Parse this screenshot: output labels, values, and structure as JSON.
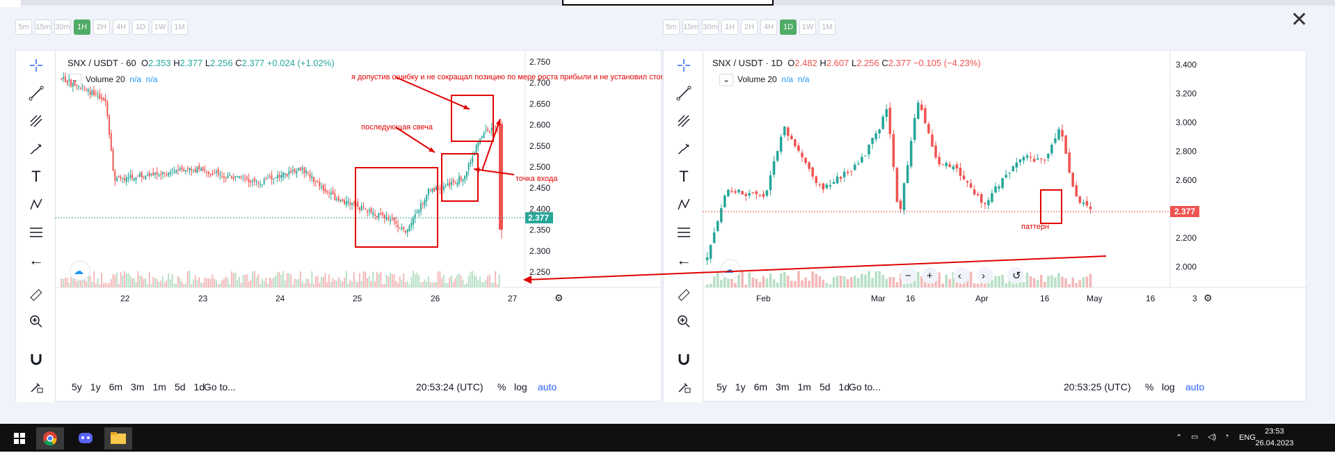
{
  "timeframes_left": [
    "5m",
    "15m",
    "30m",
    "1H",
    "2H",
    "4H",
    "1D",
    "1W",
    "1M"
  ],
  "timeframes_right": [
    "5m",
    "15m",
    "30m",
    "1H",
    "2H",
    "4H",
    "1D",
    "1W",
    "1M"
  ],
  "active_left": "1H",
  "active_right": "1D",
  "close_label": "✕",
  "left": {
    "symbol": "SNX / USDT · 60",
    "ohlc": {
      "o": "O",
      "ov": "2.353",
      "h": "H",
      "hv": "2.377",
      "l": "L",
      "lv": "2.256",
      "c": "C",
      "cv": "2.377",
      "chg": "+0.024 (+1.02%)"
    },
    "volume_label": "Volume 20",
    "na1": "n/a",
    "na2": "n/a",
    "price_axis": [
      "2.750",
      "2.700",
      "2.650",
      "2.600",
      "2.550",
      "2.500",
      "2.450",
      "2.400",
      "2.350",
      "2.300",
      "2.250"
    ],
    "last_price": "2.377",
    "time_axis": [
      "22",
      "23",
      "24",
      "25",
      "26",
      "27"
    ],
    "ranges": [
      "5y",
      "1y",
      "6m",
      "3m",
      "1m",
      "5d",
      "1d"
    ],
    "goto": "Go to...",
    "time": "20:53:24 (UTC)",
    "pct": "%",
    "log": "log",
    "auto": "auto",
    "annotations": {
      "mistake": "я допустив ошибку и не сокращал позицию по мере роста прибыли и не установил стоп в безубітке.",
      "next_candle": "последующая свеча",
      "entry": "точка входа"
    }
  },
  "right": {
    "symbol": "SNX / USDT · 1D",
    "ohlc": {
      "o": "O",
      "ov": "2.482",
      "h": "H",
      "hv": "2.607",
      "l": "L",
      "lv": "2.256",
      "c": "C",
      "cv": "2.377",
      "chg": "−0.105 (−4.23%)"
    },
    "volume_label": "Volume 20",
    "na1": "n/a",
    "na2": "n/a",
    "price_axis": [
      "3.400",
      "3.200",
      "3.000",
      "2.800",
      "2.600",
      "2.400",
      "2.200",
      "2.000"
    ],
    "last_price": "2.377",
    "time_axis": [
      "Feb",
      "Mar",
      "16",
      "Apr",
      "16",
      "May",
      "16",
      "3"
    ],
    "ranges": [
      "5y",
      "1y",
      "6m",
      "3m",
      "1m",
      "5d",
      "1d"
    ],
    "goto": "Go to...",
    "time": "20:53:25 (UTC)",
    "pct": "%",
    "log": "log",
    "auto": "auto",
    "annotations": {
      "pattern": "паттерн"
    }
  },
  "taskbar": {
    "lang": "ENG",
    "time": "23:53",
    "date": "26.04.2023"
  },
  "colors": {
    "up": "#26a69a",
    "down": "#ef5350",
    "annot": "#e00000",
    "accent": "#50ab66"
  }
}
